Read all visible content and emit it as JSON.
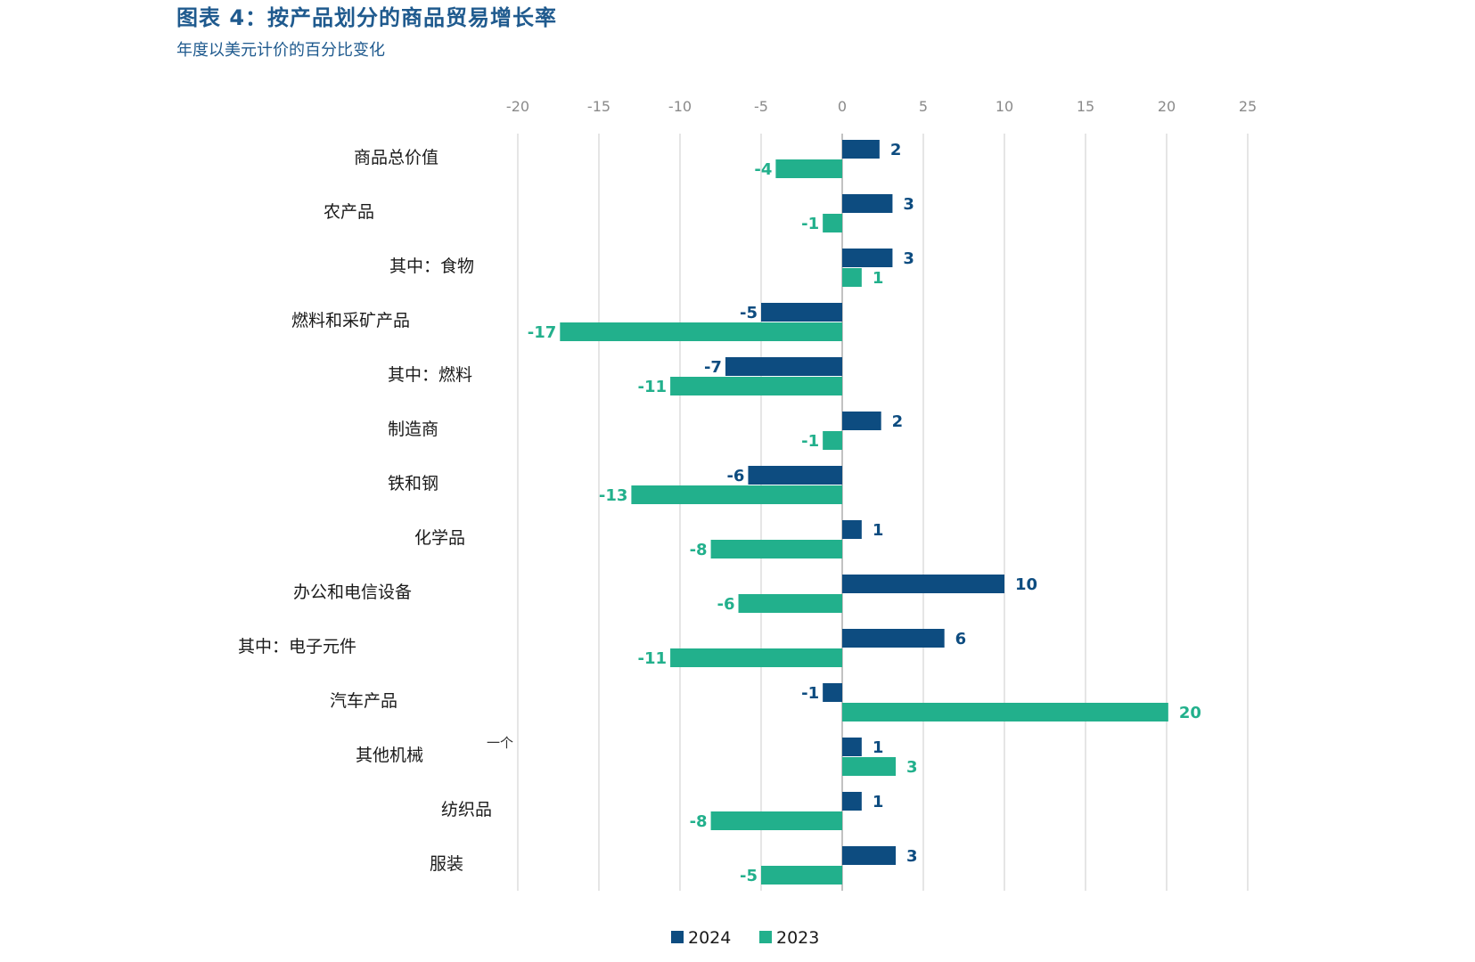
{
  "header": {
    "title": "图表 4：按产品划分的商品贸易增长率",
    "subtitle": "年度以美元计价的百分比变化"
  },
  "chart_data": {
    "type": "bar",
    "orientation": "horizontal",
    "xlim": [
      -20,
      25
    ],
    "xticks": [
      -20,
      -15,
      -10,
      -5,
      0,
      5,
      10,
      15,
      20,
      25
    ],
    "grid": true,
    "legend_position": "bottom-center",
    "categories": [
      "商品总价值",
      "农产品",
      "其中：食物",
      "燃料和采矿产品",
      "其中：燃料",
      "制造商",
      "铁和钢",
      "化学品",
      "办公和电信设备",
      "其中：电子元件",
      "汽车产品",
      "其他机械",
      "纺织品",
      "服装"
    ],
    "series": [
      {
        "name": "2024",
        "color": "#0d4c80",
        "values": [
          2.3,
          3.1,
          3.1,
          -5,
          -7.2,
          2.4,
          -5.8,
          1.2,
          10,
          6.3,
          -1.2,
          1.2,
          1.2,
          3.3
        ],
        "labels": [
          "2",
          "3",
          "3",
          "-5",
          "-7",
          "2",
          "-6",
          "1",
          "10",
          "6",
          "-1",
          "1",
          "1",
          "3"
        ]
      },
      {
        "name": "2023",
        "color": "#22b08c",
        "values": [
          -4.1,
          -1.2,
          1.2,
          -17.4,
          -10.6,
          -1.2,
          -13,
          -8.1,
          -6.4,
          -10.6,
          20.1,
          3.3,
          -8.1,
          -5
        ],
        "labels": [
          "-4",
          "-1",
          "1",
          "-17",
          "-11",
          "-1",
          "-13",
          "-8",
          "-6",
          "-11",
          "20",
          "3",
          "-8",
          "-5"
        ]
      }
    ],
    "annotation": "一个"
  }
}
